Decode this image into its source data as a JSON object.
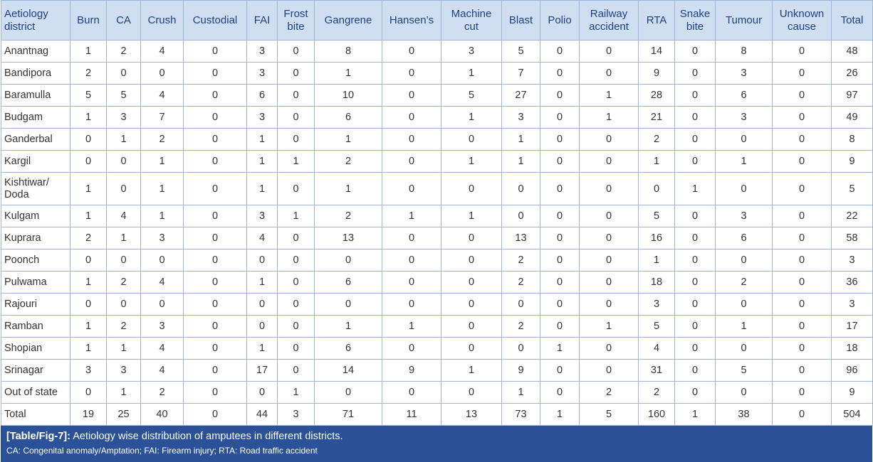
{
  "table": {
    "columns": [
      "Aetiology district",
      "Burn",
      "CA",
      "Crush",
      "Custodial",
      "FAI",
      "Frost bite",
      "Gangrene",
      "Hansen’s",
      "Machine cut",
      "Blast",
      "Polio",
      "Railway accident",
      "RTA",
      "Snake bite",
      "Tumour",
      "Unknown cause",
      "Total"
    ],
    "rows": [
      {
        "label": "Anantnag",
        "values": [
          1,
          2,
          4,
          0,
          3,
          0,
          8,
          0,
          3,
          5,
          0,
          0,
          14,
          0,
          8,
          0,
          48
        ]
      },
      {
        "label": "Bandipora",
        "values": [
          2,
          0,
          0,
          0,
          3,
          0,
          1,
          0,
          1,
          7,
          0,
          0,
          9,
          0,
          3,
          0,
          26
        ]
      },
      {
        "label": "Baramulla",
        "values": [
          5,
          5,
          4,
          0,
          6,
          0,
          10,
          0,
          5,
          27,
          0,
          1,
          28,
          0,
          6,
          0,
          97
        ]
      },
      {
        "label": "Budgam",
        "values": [
          1,
          3,
          7,
          0,
          3,
          0,
          6,
          0,
          1,
          3,
          0,
          1,
          21,
          0,
          3,
          0,
          49
        ]
      },
      {
        "label": "Ganderbal",
        "values": [
          0,
          1,
          2,
          0,
          1,
          0,
          1,
          0,
          0,
          1,
          0,
          0,
          2,
          0,
          0,
          0,
          8
        ]
      },
      {
        "label": "Kargil",
        "values": [
          0,
          0,
          1,
          0,
          1,
          1,
          2,
          0,
          1,
          1,
          0,
          0,
          1,
          0,
          1,
          0,
          9
        ]
      },
      {
        "label": "Kishtiwar/ Doda",
        "values": [
          1,
          0,
          1,
          0,
          1,
          0,
          1,
          0,
          0,
          0,
          0,
          0,
          0,
          1,
          0,
          0,
          5
        ]
      },
      {
        "label": "Kulgam",
        "values": [
          1,
          4,
          1,
          0,
          3,
          1,
          2,
          1,
          1,
          0,
          0,
          0,
          5,
          0,
          3,
          0,
          22
        ]
      },
      {
        "label": "Kuprara",
        "values": [
          2,
          1,
          3,
          0,
          4,
          0,
          13,
          0,
          0,
          13,
          0,
          0,
          16,
          0,
          6,
          0,
          58
        ]
      },
      {
        "label": "Poonch",
        "values": [
          0,
          0,
          0,
          0,
          0,
          0,
          0,
          0,
          0,
          2,
          0,
          0,
          1,
          0,
          0,
          0,
          3
        ]
      },
      {
        "label": "Pulwama",
        "values": [
          1,
          2,
          4,
          0,
          1,
          0,
          6,
          0,
          0,
          2,
          0,
          0,
          18,
          0,
          2,
          0,
          36
        ]
      },
      {
        "label": "Rajouri",
        "values": [
          0,
          0,
          0,
          0,
          0,
          0,
          0,
          0,
          0,
          0,
          0,
          0,
          3,
          0,
          0,
          0,
          3
        ]
      },
      {
        "label": "Ramban",
        "values": [
          1,
          2,
          3,
          0,
          0,
          0,
          1,
          1,
          0,
          2,
          0,
          1,
          5,
          0,
          1,
          0,
          17
        ]
      },
      {
        "label": "Shopian",
        "values": [
          1,
          1,
          4,
          0,
          1,
          0,
          6,
          0,
          0,
          0,
          1,
          0,
          4,
          0,
          0,
          0,
          18
        ]
      },
      {
        "label": "Srinagar",
        "values": [
          3,
          3,
          4,
          0,
          17,
          0,
          14,
          9,
          1,
          9,
          0,
          0,
          31,
          0,
          5,
          0,
          96
        ]
      },
      {
        "label": "Out of state",
        "values": [
          0,
          1,
          2,
          0,
          0,
          1,
          0,
          0,
          0,
          1,
          0,
          2,
          2,
          0,
          0,
          0,
          9
        ]
      },
      {
        "label": "Total",
        "values": [
          19,
          25,
          40,
          0,
          44,
          3,
          71,
          11,
          13,
          73,
          1,
          5,
          160,
          1,
          38,
          0,
          504
        ]
      }
    ]
  },
  "caption": {
    "label": "[Table/Fig-7]:",
    "text": "Aetiology wise distribution of amputees in different districts."
  },
  "footnote": "CA: Congenital anomaly/Amptation; FAI: Firearm injury; RTA: Road traffic accident"
}
